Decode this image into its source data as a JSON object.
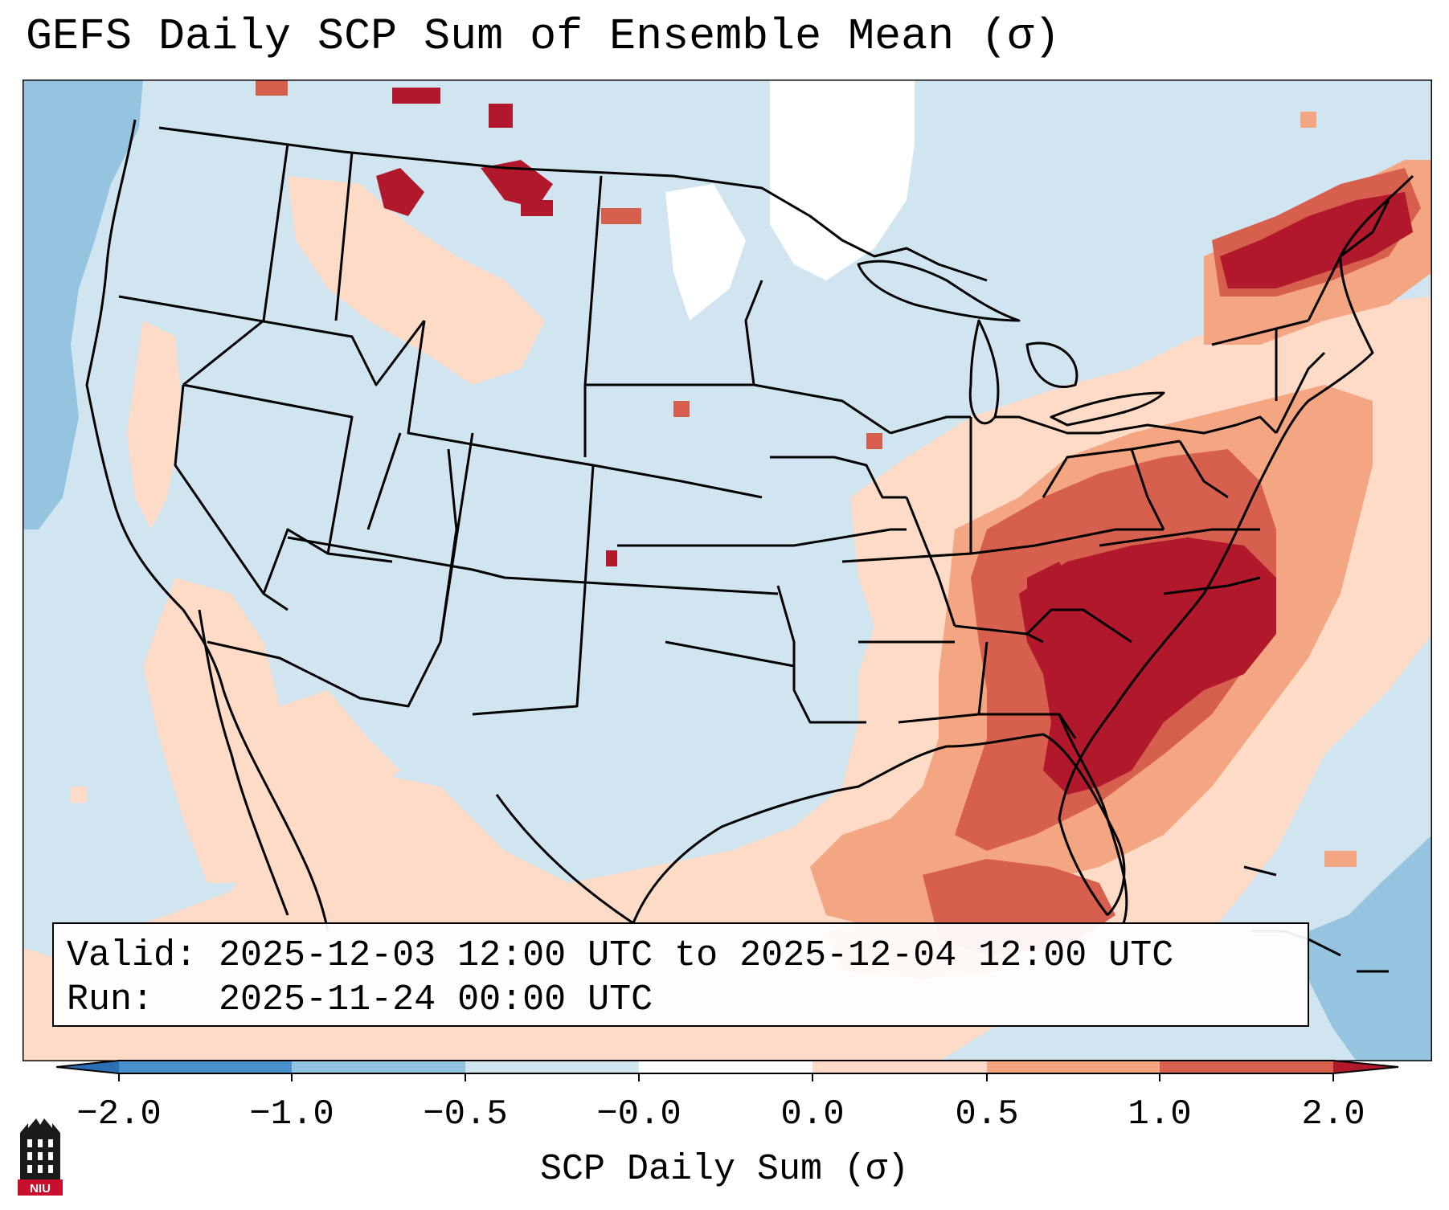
{
  "title": "GEFS Daily SCP Sum of Ensemble Mean (σ)",
  "valid_label": "Valid:",
  "valid_text": "2025-12-03 12:00 UTC to 2025-12-04 12:00 UTC",
  "run_label": "Run:",
  "run_text": "2025-11-24 00:00 UTC",
  "colorbar": {
    "label": "SCP Daily Sum (σ)",
    "ticks": [
      "−2.0",
      "−1.0",
      "−0.5",
      "−0.0",
      "0.0",
      "0.5",
      "1.0",
      "2.0"
    ],
    "colors": {
      "below_-2": "#2c6fb5",
      "-2_-1": "#4a90c8",
      "-1_-0.5": "#94c4df",
      "-0.5_0": "#d1e5f0",
      "zero": "#ffffff",
      "0_0.5": "#fddbc7",
      "0.5_1": "#f4a582",
      "1_2": "#d6604d",
      "above_2": "#b2182b"
    }
  },
  "logo": {
    "text": "NIU",
    "icon": "niu-tower-logo"
  },
  "colors": {
    "ocean_bg": "#d1e5f0",
    "border": "#000000"
  }
}
